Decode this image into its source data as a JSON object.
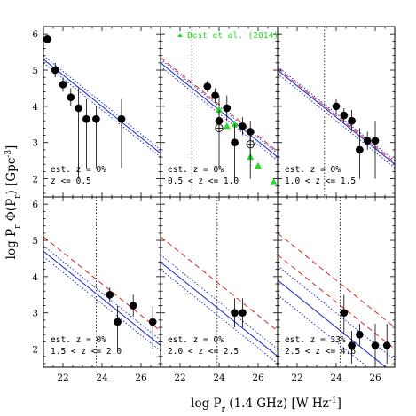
{
  "chart_data": {
    "type": "scatter",
    "xlabel": "log P_r (1.4 GHz) [W Hz^-1]",
    "ylabel": "log P_r Φ(P_r) [Gpc^-3]",
    "xlim": [
      21,
      27
    ],
    "ylim": [
      1.5,
      6.2
    ],
    "xticks": [
      "22",
      "24",
      "26"
    ],
    "yticks": [
      "2",
      "3",
      "4",
      "5",
      "6"
    ],
    "colors": {
      "solid": "#2233cc",
      "dotted": "#2233cc",
      "dashed": "#dd2222",
      "best": "#22dd22",
      "point": "#000000"
    },
    "legend": {
      "label": "Best et al. (2014)",
      "position": "top-center"
    },
    "panels": [
      {
        "annotation": [
          "est. z = 0%",
          "z <= 0.5"
        ],
        "solid": [
          [
            21,
            5.3
          ],
          [
            27,
            2.7
          ]
        ],
        "dotted": [
          [
            [
              21,
              5.4
            ],
            [
              27,
              2.8
            ]
          ],
          [
            [
              21,
              5.2
            ],
            [
              27,
              2.6
            ]
          ]
        ],
        "points": [
          {
            "x": 21.2,
            "y": 5.85,
            "ylo": 5.75,
            "yhi": 5.95,
            "xerr": 0.2
          },
          {
            "x": 21.6,
            "y": 5.0,
            "ylo": 4.8,
            "yhi": 5.2,
            "xerr": 0.2
          },
          {
            "x": 22.0,
            "y": 4.6,
            "ylo": 4.4,
            "yhi": 4.8,
            "xerr": 0.2
          },
          {
            "x": 22.4,
            "y": 4.25,
            "ylo": 4.0,
            "yhi": 4.5,
            "xerr": 0.2
          },
          {
            "x": 22.8,
            "y": 3.95,
            "ylo": 2.0,
            "yhi": 4.5,
            "xerr": 0.2
          },
          {
            "x": 23.2,
            "y": 3.65,
            "ylo": 2.3,
            "yhi": 4.2,
            "xerr": 0.2
          },
          {
            "x": 23.7,
            "y": 3.65,
            "ylo": 2.3,
            "yhi": 4.0,
            "xerr": 0.2
          },
          {
            "x": 25.0,
            "y": 3.65,
            "ylo": 2.3,
            "yhi": 4.2,
            "xerr": 0.2
          }
        ]
      },
      {
        "annotation": [
          "est. z = 0%",
          "0.5 < z <= 1.0"
        ],
        "vline": 22.6,
        "solid": [
          [
            21,
            5.2
          ],
          [
            27,
            2.6
          ]
        ],
        "dotted": [
          [
            [
              21,
              5.3
            ],
            [
              27,
              2.7
            ]
          ],
          [
            [
              21,
              5.1
            ],
            [
              27,
              2.5
            ]
          ]
        ],
        "dashed": [
          [
            [
              21,
              5.35
            ],
            [
              27,
              2.75
            ]
          ]
        ],
        "points": [
          {
            "x": 23.4,
            "y": 4.55,
            "ylo": 4.4,
            "yhi": 4.7,
            "xerr": 0.2
          },
          {
            "x": 23.8,
            "y": 4.3,
            "ylo": 4.1,
            "yhi": 4.5,
            "xerr": 0.2
          },
          {
            "x": 24.0,
            "y": 3.6,
            "ylo": 3.3,
            "yhi": 3.9,
            "xerr": 0.2
          },
          {
            "x": 24.4,
            "y": 3.95,
            "ylo": 3.6,
            "yhi": 4.3,
            "xerr": 0.2
          },
          {
            "x": 24.8,
            "y": 3.0,
            "ylo": 2.0,
            "yhi": 3.5,
            "xerr": 0.2
          },
          {
            "x": 25.2,
            "y": 3.45,
            "ylo": 3.2,
            "yhi": 3.7,
            "xerr": 0.2
          },
          {
            "x": 25.6,
            "y": 3.3,
            "ylo": 2.0,
            "yhi": 3.6,
            "xerr": 0.2
          }
        ],
        "open_points": [
          {
            "x": 24.0,
            "y": 3.4,
            "ylo": 2.3,
            "yhi": 4.3,
            "xerr": 0.2
          },
          {
            "x": 25.6,
            "y": 2.95,
            "ylo": 2.7,
            "yhi": 3.2,
            "xerr": 0.2
          }
        ],
        "best": [
          {
            "x": 24.0,
            "y": 3.9
          },
          {
            "x": 24.4,
            "y": 3.45
          },
          {
            "x": 24.8,
            "y": 3.5
          },
          {
            "x": 25.2,
            "y": 3.45
          },
          {
            "x": 25.6,
            "y": 2.6
          },
          {
            "x": 26.0,
            "y": 2.35
          },
          {
            "x": 26.8,
            "y": 1.9
          }
        ]
      },
      {
        "annotation": [
          "est. z = 0%",
          "1.0 < z <= 1.5"
        ],
        "vline": 23.4,
        "solid": [
          [
            21,
            5.0
          ],
          [
            27,
            2.4
          ]
        ],
        "dotted": [
          [
            [
              21,
              5.1
            ],
            [
              27,
              2.5
            ]
          ],
          [
            [
              21,
              4.9
            ],
            [
              27,
              2.3
            ]
          ]
        ],
        "dashed": [
          [
            [
              21,
              5.05
            ],
            [
              27,
              2.45
            ]
          ]
        ],
        "points": [
          {
            "x": 24.0,
            "y": 4.0,
            "ylo": 3.8,
            "yhi": 4.2,
            "xerr": 0.2
          },
          {
            "x": 24.4,
            "y": 3.75,
            "ylo": 3.55,
            "yhi": 3.95,
            "xerr": 0.2
          },
          {
            "x": 24.8,
            "y": 3.6,
            "ylo": 3.3,
            "yhi": 3.9,
            "xerr": 0.2
          },
          {
            "x": 25.2,
            "y": 2.8,
            "ylo": 2.0,
            "yhi": 3.4,
            "xerr": 0.2
          },
          {
            "x": 25.6,
            "y": 3.05,
            "ylo": 2.8,
            "yhi": 3.3,
            "xerr": 0.2
          },
          {
            "x": 26.0,
            "y": 3.05,
            "ylo": 2.0,
            "yhi": 3.6,
            "xerr": 0.2
          }
        ]
      },
      {
        "annotation": [
          "est. z = 0%",
          "1.5 < z <= 2.0"
        ],
        "vline": 23.7,
        "solid": [
          [
            21,
            4.7
          ],
          [
            27,
            2.1
          ]
        ],
        "dotted": [
          [
            [
              21,
              4.85
            ],
            [
              27,
              2.25
            ]
          ],
          [
            [
              21,
              4.55
            ],
            [
              27,
              1.95
            ]
          ]
        ],
        "dashed": [
          [
            [
              21,
              5.1
            ],
            [
              27,
              2.5
            ]
          ]
        ],
        "points": [
          {
            "x": 24.4,
            "y": 3.5,
            "ylo": 3.3,
            "yhi": 3.7,
            "xerr": 0.2
          },
          {
            "x": 24.8,
            "y": 2.75,
            "ylo": 2.0,
            "yhi": 3.2,
            "xerr": 0.2
          },
          {
            "x": 25.6,
            "y": 3.2,
            "ylo": 2.9,
            "yhi": 3.5,
            "xerr": 0.2
          },
          {
            "x": 26.6,
            "y": 2.75,
            "ylo": 2.0,
            "yhi": 3.2,
            "xerr": 0.2
          }
        ]
      },
      {
        "annotation": [
          "est. z = 0%",
          "2.0 < z <= 2.5"
        ],
        "vline": 23.9,
        "solid": [
          [
            21,
            4.4
          ],
          [
            27,
            1.8
          ]
        ],
        "dotted": [
          [
            [
              21,
              4.6
            ],
            [
              27,
              2.0
            ]
          ],
          [
            [
              21,
              4.2
            ],
            [
              27,
              1.6
            ]
          ]
        ],
        "dashed": [
          [
            [
              21,
              5.1
            ],
            [
              27,
              2.5
            ]
          ]
        ],
        "points": [
          {
            "x": 24.8,
            "y": 3.0,
            "ylo": 2.6,
            "yhi": 3.4,
            "xerr": 0.2
          },
          {
            "x": 25.2,
            "y": 3.0,
            "ylo": 2.6,
            "yhi": 3.4,
            "xerr": 0.2
          }
        ]
      },
      {
        "annotation": [
          "est. z = 33%",
          "2.5 < z <= 4.6"
        ],
        "vline": 24.2,
        "solid": [
          [
            21,
            3.9
          ],
          [
            27,
            1.3
          ]
        ],
        "dotted": [
          [
            [
              21,
              4.3
            ],
            [
              27,
              1.7
            ]
          ],
          [
            [
              21,
              3.5
            ],
            [
              27,
              0.9
            ]
          ]
        ],
        "dashed": [
          [
            [
              21,
              5.2
            ],
            [
              27,
              2.6
            ]
          ],
          [
            [
              21,
              4.6
            ],
            [
              27,
              2.0
            ]
          ]
        ],
        "points": [
          {
            "x": 24.4,
            "y": 3.0,
            "ylo": 2.4,
            "yhi": 3.5,
            "xerr": 0.2
          },
          {
            "x": 24.8,
            "y": 2.1,
            "ylo": 1.6,
            "yhi": 2.5,
            "xerr": 0.2
          },
          {
            "x": 25.2,
            "y": 2.4,
            "ylo": 2.1,
            "yhi": 2.7,
            "xerr": 0.2
          },
          {
            "x": 26.0,
            "y": 2.1,
            "ylo": 1.6,
            "yhi": 2.7,
            "xerr": 0.2
          },
          {
            "x": 26.6,
            "y": 2.1,
            "ylo": 1.6,
            "yhi": 2.7,
            "xerr": 0.2
          }
        ]
      }
    ]
  }
}
